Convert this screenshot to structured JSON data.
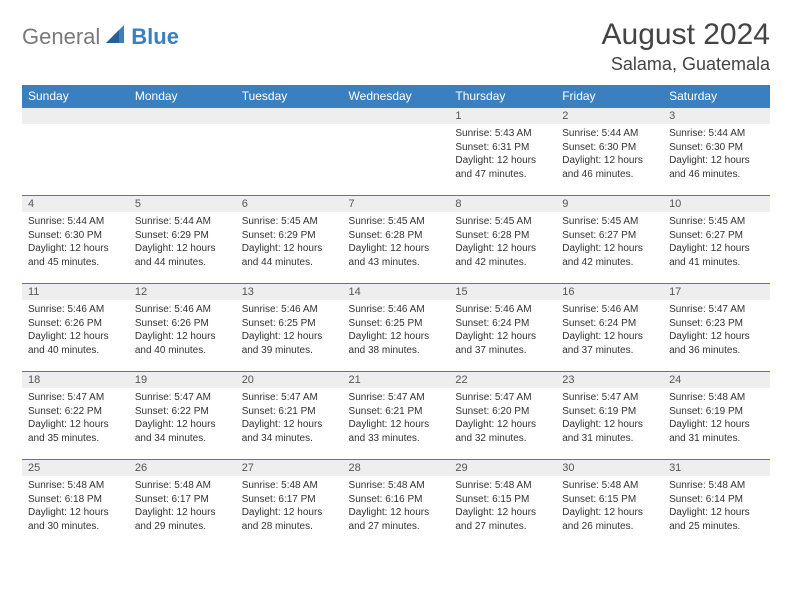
{
  "brand": {
    "part1": "General",
    "part2": "Blue"
  },
  "title": "August 2024",
  "location": "Salama, Guatemala",
  "colors": {
    "header_bg": "#3a80c0",
    "header_text": "#ffffff",
    "daynum_bg": "#eeeeee",
    "row_border": "#3a80c0",
    "body_text": "#333333",
    "brand_gray": "#7a7a7a",
    "brand_blue": "#3a80c0",
    "page_bg": "#ffffff"
  },
  "typography": {
    "title_fontsize": 30,
    "location_fontsize": 18,
    "weekday_fontsize": 12,
    "daynum_fontsize": 11,
    "body_fontsize": 10
  },
  "weekdays": [
    "Sunday",
    "Monday",
    "Tuesday",
    "Wednesday",
    "Thursday",
    "Friday",
    "Saturday"
  ],
  "rows": [
    [
      null,
      null,
      null,
      null,
      {
        "n": "1",
        "sr": "5:43 AM",
        "ss": "6:31 PM",
        "dl": "12 hours and 47 minutes."
      },
      {
        "n": "2",
        "sr": "5:44 AM",
        "ss": "6:30 PM",
        "dl": "12 hours and 46 minutes."
      },
      {
        "n": "3",
        "sr": "5:44 AM",
        "ss": "6:30 PM",
        "dl": "12 hours and 46 minutes."
      }
    ],
    [
      {
        "n": "4",
        "sr": "5:44 AM",
        "ss": "6:30 PM",
        "dl": "12 hours and 45 minutes."
      },
      {
        "n": "5",
        "sr": "5:44 AM",
        "ss": "6:29 PM",
        "dl": "12 hours and 44 minutes."
      },
      {
        "n": "6",
        "sr": "5:45 AM",
        "ss": "6:29 PM",
        "dl": "12 hours and 44 minutes."
      },
      {
        "n": "7",
        "sr": "5:45 AM",
        "ss": "6:28 PM",
        "dl": "12 hours and 43 minutes."
      },
      {
        "n": "8",
        "sr": "5:45 AM",
        "ss": "6:28 PM",
        "dl": "12 hours and 42 minutes."
      },
      {
        "n": "9",
        "sr": "5:45 AM",
        "ss": "6:27 PM",
        "dl": "12 hours and 42 minutes."
      },
      {
        "n": "10",
        "sr": "5:45 AM",
        "ss": "6:27 PM",
        "dl": "12 hours and 41 minutes."
      }
    ],
    [
      {
        "n": "11",
        "sr": "5:46 AM",
        "ss": "6:26 PM",
        "dl": "12 hours and 40 minutes."
      },
      {
        "n": "12",
        "sr": "5:46 AM",
        "ss": "6:26 PM",
        "dl": "12 hours and 40 minutes."
      },
      {
        "n": "13",
        "sr": "5:46 AM",
        "ss": "6:25 PM",
        "dl": "12 hours and 39 minutes."
      },
      {
        "n": "14",
        "sr": "5:46 AM",
        "ss": "6:25 PM",
        "dl": "12 hours and 38 minutes."
      },
      {
        "n": "15",
        "sr": "5:46 AM",
        "ss": "6:24 PM",
        "dl": "12 hours and 37 minutes."
      },
      {
        "n": "16",
        "sr": "5:46 AM",
        "ss": "6:24 PM",
        "dl": "12 hours and 37 minutes."
      },
      {
        "n": "17",
        "sr": "5:47 AM",
        "ss": "6:23 PM",
        "dl": "12 hours and 36 minutes."
      }
    ],
    [
      {
        "n": "18",
        "sr": "5:47 AM",
        "ss": "6:22 PM",
        "dl": "12 hours and 35 minutes."
      },
      {
        "n": "19",
        "sr": "5:47 AM",
        "ss": "6:22 PM",
        "dl": "12 hours and 34 minutes."
      },
      {
        "n": "20",
        "sr": "5:47 AM",
        "ss": "6:21 PM",
        "dl": "12 hours and 34 minutes."
      },
      {
        "n": "21",
        "sr": "5:47 AM",
        "ss": "6:21 PM",
        "dl": "12 hours and 33 minutes."
      },
      {
        "n": "22",
        "sr": "5:47 AM",
        "ss": "6:20 PM",
        "dl": "12 hours and 32 minutes."
      },
      {
        "n": "23",
        "sr": "5:47 AM",
        "ss": "6:19 PM",
        "dl": "12 hours and 31 minutes."
      },
      {
        "n": "24",
        "sr": "5:48 AM",
        "ss": "6:19 PM",
        "dl": "12 hours and 31 minutes."
      }
    ],
    [
      {
        "n": "25",
        "sr": "5:48 AM",
        "ss": "6:18 PM",
        "dl": "12 hours and 30 minutes."
      },
      {
        "n": "26",
        "sr": "5:48 AM",
        "ss": "6:17 PM",
        "dl": "12 hours and 29 minutes."
      },
      {
        "n": "27",
        "sr": "5:48 AM",
        "ss": "6:17 PM",
        "dl": "12 hours and 28 minutes."
      },
      {
        "n": "28",
        "sr": "5:48 AM",
        "ss": "6:16 PM",
        "dl": "12 hours and 27 minutes."
      },
      {
        "n": "29",
        "sr": "5:48 AM",
        "ss": "6:15 PM",
        "dl": "12 hours and 27 minutes."
      },
      {
        "n": "30",
        "sr": "5:48 AM",
        "ss": "6:15 PM",
        "dl": "12 hours and 26 minutes."
      },
      {
        "n": "31",
        "sr": "5:48 AM",
        "ss": "6:14 PM",
        "dl": "12 hours and 25 minutes."
      }
    ]
  ],
  "labels": {
    "sunrise": "Sunrise: ",
    "sunset": "Sunset: ",
    "daylight": "Daylight: "
  }
}
